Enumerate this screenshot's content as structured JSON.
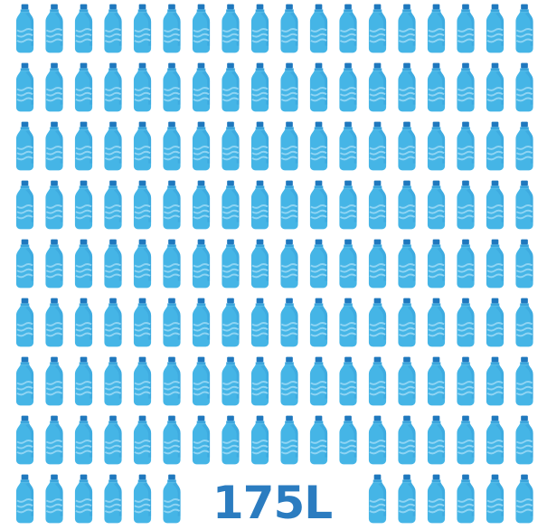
{
  "label": "175L"
}
